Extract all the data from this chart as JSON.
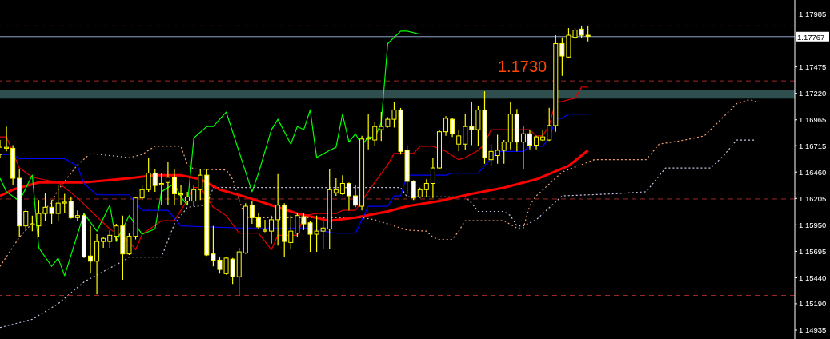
{
  "chart_data": {
    "type": "candlestick",
    "color": "#ffff00",
    "categories": [
      null,
      null,
      null,
      null,
      null,
      null,
      null,
      null,
      null,
      null,
      null,
      null,
      null,
      null,
      null,
      null,
      null,
      null,
      null,
      null,
      null,
      null,
      null,
      null,
      null,
      null,
      null,
      null,
      null,
      null,
      null,
      null,
      null,
      null,
      null,
      null,
      null,
      null,
      null,
      null,
      null,
      null,
      null,
      null,
      null,
      null,
      null,
      null,
      null,
      null,
      null,
      null,
      null,
      null,
      null,
      null,
      null,
      null,
      null,
      null,
      null,
      null,
      null,
      null,
      null,
      null,
      null,
      null,
      null,
      null,
      null,
      null,
      null,
      null,
      null,
      null,
      null,
      null,
      null,
      null,
      null,
      null,
      null,
      null,
      null,
      null,
      null,
      null,
      null,
      null,
      null,
      null,
      null,
      null,
      null,
      null,
      null,
      null,
      null,
      null,
      null,
      null,
      null,
      null,
      null,
      null,
      null,
      null,
      null,
      null,
      null,
      null,
      null,
      null,
      null,
      null,
      null,
      null,
      null,
      null,
      null,
      null,
      null,
      null
    ],
    "ohlc": [
      [
        1.1663,
        1.1677,
        1.166,
        1.167
      ],
      [
        1.1669,
        1.169,
        1.1666,
        1.167
      ],
      [
        1.1669,
        1.1672,
        1.1633,
        1.164
      ],
      [
        1.164,
        1.1649,
        1.1583,
        1.1594
      ],
      [
        1.1594,
        1.161,
        1.1589,
        1.1608
      ],
      [
        1.1595,
        1.1604,
        1.1589,
        1.1596
      ],
      [
        1.1594,
        1.1619,
        1.1583,
        1.1606
      ],
      [
        1.1606,
        1.1626,
        1.1599,
        1.1612
      ],
      [
        1.1612,
        1.1619,
        1.1596,
        1.1606
      ],
      [
        1.1606,
        1.1633,
        1.1599,
        1.1616
      ],
      [
        1.1616,
        1.1625,
        1.1606,
        1.1617
      ],
      [
        1.1618,
        1.1622,
        1.1601,
        1.1602
      ],
      [
        1.1602,
        1.1609,
        1.1599,
        1.1604
      ],
      [
        1.1604,
        1.1606,
        1.1563,
        1.1564
      ],
      [
        1.1565,
        1.1594,
        1.1548,
        1.156
      ],
      [
        1.156,
        1.1586,
        1.1528,
        1.1579
      ],
      [
        1.1579,
        1.1583,
        1.1573,
        1.1582
      ],
      [
        1.1579,
        1.159,
        1.1573,
        1.1585
      ],
      [
        1.1584,
        1.1596,
        1.1579,
        1.1594
      ],
      [
        1.1594,
        1.1604,
        1.1542,
        1.1567
      ],
      [
        1.1567,
        1.1587,
        1.1566,
        1.1584
      ],
      [
        1.1584,
        1.1622,
        1.1581,
        1.1621
      ],
      [
        1.1621,
        1.1633,
        1.1619,
        1.1629
      ],
      [
        1.1629,
        1.166,
        1.1627,
        1.1645
      ],
      [
        1.1645,
        1.1649,
        1.1627,
        1.1633
      ],
      [
        1.1634,
        1.1645,
        1.1614,
        1.1635
      ],
      [
        1.1636,
        1.1656,
        1.1614,
        1.1641
      ],
      [
        1.1641,
        1.1649,
        1.1614,
        1.1625
      ],
      [
        1.1624,
        1.1633,
        1.1614,
        1.1625
      ],
      [
        1.1618,
        1.1627,
        1.1614,
        1.1622
      ],
      [
        1.1618,
        1.1633,
        1.1613,
        1.1629
      ],
      [
        1.1629,
        1.1649,
        1.1619,
        1.1643
      ],
      [
        1.1643,
        1.1649,
        1.1565,
        1.1566
      ],
      [
        1.1567,
        1.1594,
        1.1555,
        1.1561
      ],
      [
        1.1561,
        1.1564,
        1.1548,
        1.1552
      ],
      [
        1.1548,
        1.1564,
        1.1547,
        1.1563
      ],
      [
        1.1562,
        1.1563,
        1.1538,
        1.1545
      ],
      [
        1.1545,
        1.1573,
        1.1527,
        1.1569
      ],
      [
        1.1568,
        1.1616,
        1.1567,
        1.1613
      ],
      [
        1.1614,
        1.1618,
        1.1596,
        1.1602
      ],
      [
        1.1602,
        1.1606,
        1.1591,
        1.1593
      ],
      [
        1.1589,
        1.16,
        1.1588,
        1.159
      ],
      [
        1.1589,
        1.1604,
        1.1577,
        1.16
      ],
      [
        1.16,
        1.1644,
        1.1575,
        1.1614
      ],
      [
        1.1614,
        1.1616,
        1.1564,
        1.1579
      ],
      [
        1.1578,
        1.1604,
        1.1572,
        1.1589
      ],
      [
        1.1587,
        1.1606,
        1.1583,
        1.1604
      ],
      [
        1.1603,
        1.1606,
        1.159,
        1.1596
      ],
      [
        1.1597,
        1.1599,
        1.1569,
        1.1586
      ],
      [
        1.1586,
        1.1604,
        1.1569,
        1.1589
      ],
      [
        1.1589,
        1.1599,
        1.1572,
        1.1592
      ],
      [
        1.1591,
        1.1649,
        1.1572,
        1.1629
      ],
      [
        1.1626,
        1.164,
        1.1623,
        1.1629
      ],
      [
        1.1625,
        1.1643,
        1.1624,
        1.1635
      ],
      [
        1.1635,
        1.1636,
        1.1609,
        1.1623
      ],
      [
        1.1623,
        1.1633,
        1.1612,
        1.1614
      ],
      [
        1.1613,
        1.1681,
        1.1609,
        1.1678
      ],
      [
        1.1678,
        1.1702,
        1.1668,
        1.1679
      ],
      [
        1.1677,
        1.1694,
        1.1671,
        1.169
      ],
      [
        1.1687,
        1.1704,
        1.1676,
        1.169
      ],
      [
        1.169,
        1.1699,
        1.1689,
        1.1697
      ],
      [
        1.1697,
        1.1714,
        1.1689,
        1.1706
      ],
      [
        1.1706,
        1.1708,
        1.1663,
        1.1666
      ],
      [
        1.1667,
        1.1672,
        1.1625,
        1.1637
      ],
      [
        1.1637,
        1.1638,
        1.1619,
        1.1621
      ],
      [
        1.1622,
        1.1631,
        1.1621,
        1.1629
      ],
      [
        1.1629,
        1.1639,
        1.1622,
        1.1635
      ],
      [
        1.1635,
        1.166,
        1.1621,
        1.165
      ],
      [
        1.165,
        1.1687,
        1.1649,
        1.1685
      ],
      [
        1.1685,
        1.17,
        1.1681,
        1.1698
      ],
      [
        1.1697,
        1.1698,
        1.168,
        1.1683
      ],
      [
        1.1673,
        1.1687,
        1.1666,
        1.1681
      ],
      [
        1.1673,
        1.1702,
        1.1667,
        1.169
      ],
      [
        1.169,
        1.1714,
        1.1672,
        1.1687
      ],
      [
        1.1687,
        1.171,
        1.1671,
        1.1706
      ],
      [
        1.1706,
        1.1724,
        1.1654,
        1.166
      ],
      [
        1.1658,
        1.1673,
        1.1652,
        1.1666
      ],
      [
        1.1662,
        1.1682,
        1.1654,
        1.1667
      ],
      [
        1.1667,
        1.1677,
        1.1654,
        1.1675
      ],
      [
        1.1675,
        1.1714,
        1.1668,
        1.1702
      ],
      [
        1.1702,
        1.1707,
        1.1666,
        1.1675
      ],
      [
        1.1675,
        1.1691,
        1.1649,
        1.1683
      ],
      [
        1.1683,
        1.1687,
        1.1668,
        1.1672
      ],
      [
        1.1672,
        1.1681,
        1.1668,
        1.168
      ],
      [
        1.1677,
        1.1687,
        1.1676,
        1.168
      ],
      [
        1.1677,
        1.1708,
        1.1676,
        1.1691
      ],
      [
        1.1691,
        1.1778,
        1.1685,
        1.177
      ],
      [
        1.177,
        1.1776,
        1.1739,
        1.1758
      ],
      [
        1.1757,
        1.1785,
        1.1756,
        1.1778
      ],
      [
        1.1776,
        1.1785,
        1.1774,
        1.1783
      ],
      [
        1.1784,
        1.1787,
        1.1775,
        1.1778
      ],
      [
        1.1778,
        1.1787,
        1.1772,
        1.1777
      ],
      null,
      null,
      null,
      null,
      null,
      null,
      null,
      null,
      null,
      null,
      null,
      null,
      null,
      null,
      null,
      null,
      null,
      null,
      null,
      null,
      null,
      null,
      null,
      null,
      null,
      null,
      null,
      null,
      null,
      null,
      null,
      null
    ],
    "series": [
      {
        "type": "line",
        "color": "#ff0000",
        "line_style": "solid",
        "values": [
          1.1623,
          null,
          1.1629,
          null,
          null,
          null,
          1.1636,
          null,
          null,
          null,
          null,
          null,
          null,
          1.1636,
          null,
          null,
          null,
          null,
          null,
          null,
          1.164,
          null,
          null,
          null,
          1.1643,
          null,
          null,
          null,
          1.1643,
          null,
          null,
          1.1639,
          null,
          null,
          1.1629,
          null,
          null,
          null,
          1.1622,
          null,
          null,
          null,
          1.1614,
          null,
          null,
          null,
          1.1606,
          null,
          null,
          null,
          null,
          1.1599,
          null,
          null,
          null,
          1.1602,
          null,
          null,
          null,
          null,
          1.1608,
          null,
          null,
          1.1613,
          null,
          null,
          null,
          null,
          1.1618,
          null,
          null,
          null,
          null,
          1.1625,
          null,
          null,
          null,
          null,
          1.1631,
          null,
          null,
          null,
          null,
          1.1639,
          null,
          null,
          null,
          null,
          1.1652,
          null,
          null,
          1.1667,
          null,
          null,
          null,
          null,
          null,
          null,
          null,
          null,
          null,
          null,
          null,
          null,
          null,
          null,
          null,
          null,
          null,
          null,
          null,
          null,
          null,
          null,
          null,
          null,
          null,
          null,
          null,
          null,
          null,
          null,
          null,
          null
        ]
      },
      {
        "type": "line",
        "color": "#e00000",
        "line_style": "solid",
        "values": [
          1.168,
          1.168,
          null,
          1.165,
          null,
          1.1641,
          null,
          null,
          null,
          1.1636,
          null,
          null,
          1.1621,
          null,
          null,
          null,
          null,
          1.1591,
          null,
          null,
          1.1579,
          1.1571,
          1.1586,
          null,
          null,
          1.1599,
          null,
          1.1599,
          null,
          1.1619,
          1.1631,
          1.1631,
          null,
          1.1612,
          null,
          1.1604,
          null,
          1.1587,
          null,
          null,
          1.1587,
          null,
          1.1571,
          1.1585,
          null,
          null,
          1.1585,
          1.1604,
          null,
          1.1606,
          null,
          null,
          1.1606,
          1.1609,
          null,
          1.1609,
          null,
          1.1627,
          1.1636,
          null,
          1.1653,
          1.1664,
          null,
          null,
          1.1664,
          1.1671,
          null,
          1.1671,
          null,
          1.1666,
          null,
          1.1658,
          1.166,
          null,
          1.1667,
          1.1673,
          1.1687,
          null,
          null,
          null,
          null,
          null,
          1.1687,
          1.1681,
          1.1681,
          1.1691,
          1.1714,
          1.1714,
          1.1716,
          1.1717,
          1.1728,
          1.1728,
          null,
          null,
          null,
          null,
          null,
          null,
          null,
          null,
          null,
          null,
          null,
          null,
          null,
          null,
          null,
          null,
          null,
          null,
          null,
          null,
          null,
          null,
          null,
          null,
          null,
          null,
          null,
          null,
          null,
          null,
          null,
          null
        ]
      },
      {
        "type": "line",
        "color": "#0000ff",
        "line_style": "solid",
        "values": [
          1.1663,
          null,
          1.1663,
          1.1659,
          null,
          null,
          null,
          null,
          null,
          null,
          1.1659,
          null,
          1.1652,
          1.1635,
          null,
          1.1624,
          null,
          null,
          null,
          null,
          1.1624,
          null,
          1.1609,
          null,
          null,
          null,
          1.1609,
          null,
          1.1594,
          null,
          null,
          null,
          null,
          null,
          null,
          null,
          null,
          1.1592,
          null,
          null,
          null,
          null,
          null,
          null,
          null,
          null,
          null,
          null,
          1.1592,
          1.159,
          null,
          null,
          1.1587,
          null,
          null,
          1.1587,
          null,
          1.1613,
          null,
          null,
          1.1613,
          1.1623,
          1.1623,
          1.1643,
          null,
          null,
          null,
          null,
          null,
          1.1643,
          1.1645,
          null,
          null,
          null,
          1.1645,
          1.1652,
          null,
          1.1666,
          null,
          null,
          null,
          1.1666,
          1.1671,
          null,
          1.1671,
          1.1679,
          1.1697,
          1.1698,
          1.1702,
          null,
          null,
          1.1702,
          null,
          null,
          null,
          null,
          null,
          null,
          null,
          null,
          null,
          null,
          null,
          null,
          null,
          null,
          null,
          null,
          null,
          null,
          null,
          null,
          null,
          null,
          null,
          null,
          null,
          null,
          null,
          null,
          null,
          null,
          null,
          null
        ]
      },
      {
        "type": "line",
        "color": "#00ff00",
        "line_style": "solid",
        "values": [
          1.164,
          1.1627,
          null,
          1.1618,
          null,
          1.1643,
          1.1573,
          null,
          1.1555,
          1.1563,
          1.1546,
          null,
          null,
          1.1606,
          null,
          1.1589,
          null,
          1.1614,
          1.1579,
          null,
          1.1604,
          null,
          1.1586,
          null,
          1.1591,
          1.1627,
          null,
          1.1635,
          1.1622,
          1.1614,
          1.1679,
          null,
          1.169,
          1.169,
          null,
          1.1704,
          null,
          null,
          null,
          1.1627,
          1.1645,
          null,
          1.1687,
          1.1697,
          null,
          1.1673,
          1.169,
          1.1687,
          1.1706,
          1.166,
          null,
          1.1667,
          1.167,
          1.1702,
          1.1675,
          1.1683,
          1.1672,
          1.168,
          1.1679,
          1.1694,
          1.177,
          null,
          1.1782,
          1.1782,
          null,
          1.1779,
          null,
          null,
          null,
          null,
          null,
          null,
          null,
          null,
          null,
          null,
          null,
          null,
          null,
          null,
          null,
          null,
          null,
          null,
          null,
          null,
          null,
          null,
          null,
          null,
          null,
          null,
          null,
          null,
          null,
          null,
          null,
          null,
          null,
          null,
          null,
          null,
          null,
          null,
          null,
          null,
          null,
          null,
          null,
          null,
          null,
          null,
          null,
          null,
          null,
          null,
          null,
          null,
          null,
          null,
          null,
          null,
          null,
          null
        ]
      },
      {
        "type": "line",
        "color": "#f4a070",
        "line_style": "dotted",
        "values": [
          1.1555,
          null,
          null,
          1.1583,
          null,
          null,
          null,
          null,
          1.1617,
          1.1629,
          null,
          null,
          1.1653,
          null,
          1.1664,
          null,
          null,
          null,
          null,
          null,
          1.166,
          null,
          1.1663,
          null,
          1.1671,
          null,
          null,
          null,
          1.1671,
          1.1653,
          1.1649,
          null,
          null,
          null,
          null,
          1.1648,
          1.1639,
          1.1619,
          1.1602,
          null,
          null,
          null,
          null,
          null,
          null,
          null,
          null,
          null,
          null,
          null,
          null,
          null,
          null,
          null,
          null,
          null,
          1.1602,
          null,
          1.16,
          null,
          null,
          null,
          1.1592,
          1.159,
          null,
          null,
          1.1589,
          1.1583,
          1.1581,
          null,
          1.1581,
          1.1589,
          1.1599,
          null,
          null,
          null,
          null,
          null,
          1.1599,
          null,
          1.1592,
          1.1592,
          1.1614,
          1.1623,
          null,
          null,
          null,
          1.1646,
          null,
          null,
          null,
          null,
          1.1658,
          null,
          null,
          null,
          null,
          null,
          null,
          null,
          1.1658,
          null,
          1.1673,
          null,
          null,
          null,
          1.1677,
          null,
          null,
          1.1681,
          null,
          null,
          null,
          null,
          1.1712,
          null,
          1.1716,
          1.1714,
          null,
          null,
          null,
          null,
          null,
          null
        ]
      },
      {
        "type": "line",
        "color": "#c8c0e0",
        "line_style": "dotted",
        "values": [
          1.1496,
          null,
          null,
          null,
          null,
          1.1504,
          null,
          null,
          null,
          1.1519,
          null,
          null,
          null,
          1.154,
          null,
          null,
          1.155,
          null,
          null,
          1.156,
          1.1564,
          null,
          null,
          null,
          null,
          1.1564,
          null,
          1.1596,
          null,
          1.1612,
          null,
          null,
          1.1614,
          1.1631,
          null,
          null,
          null,
          null,
          null,
          null,
          null,
          null,
          null,
          null,
          null,
          null,
          null,
          null,
          null,
          null,
          null,
          null,
          null,
          null,
          null,
          null,
          null,
          null,
          null,
          null,
          null,
          null,
          1.1631,
          1.1622,
          null,
          null,
          null,
          null,
          null,
          null,
          null,
          null,
          1.1622,
          1.1616,
          1.1608,
          null,
          null,
          null,
          1.1608,
          1.1604,
          1.1594,
          1.1594,
          null,
          1.16,
          null,
          null,
          null,
          1.1623,
          null,
          null,
          null,
          null,
          null,
          null,
          null,
          1.1625,
          null,
          null,
          null,
          null,
          1.1627,
          null,
          null,
          1.165,
          null,
          null,
          null,
          null,
          null,
          null,
          1.165,
          null,
          1.1662,
          null,
          1.1677,
          null,
          null,
          1.1677,
          null,
          null,
          null,
          null,
          null,
          null
        ]
      }
    ],
    "ylim": [
      1.1485,
      1.1812
    ],
    "yticks": [
      1.17985,
      1.17475,
      {
        "value": 1.1722,
        "label": "1.17220"
      },
      1.16965,
      1.16715,
      {
        "value": 1.1646,
        "label": "1.16460"
      },
      1.16205,
      {
        "value": 1.1595,
        "label": "1.15950"
      },
      1.15695,
      {
        "value": 1.1544,
        "label": "1.15440"
      },
      {
        "value": 1.1519,
        "label": "1.15190"
      },
      1.14935
    ],
    "tick_labels": "y",
    "ref_lines": [
      {
        "axis": "y",
        "value": 1.17767,
        "label": "1.17767",
        "color": "#8fa4c8",
        "line_style": "solid"
      },
      {
        "axis": "y",
        "value": 1.1787,
        "color": "#a02828",
        "line_style": "dashed"
      },
      {
        "axis": "y",
        "value": 1.1734,
        "color": "#a02828",
        "line_style": "dashed"
      },
      {
        "axis": "y",
        "value": 1.162,
        "color": "#a02828",
        "line_style": "dashed"
      },
      {
        "axis": "y",
        "value": 1.1527,
        "color": "#a02828",
        "line_style": "dashed"
      }
    ],
    "bands": [
      {
        "axis": "y",
        "from": 1.1717,
        "to": 1.1725,
        "color": "#2f4f4f"
      }
    ],
    "annotations": [
      "1.1730"
    ]
  }
}
